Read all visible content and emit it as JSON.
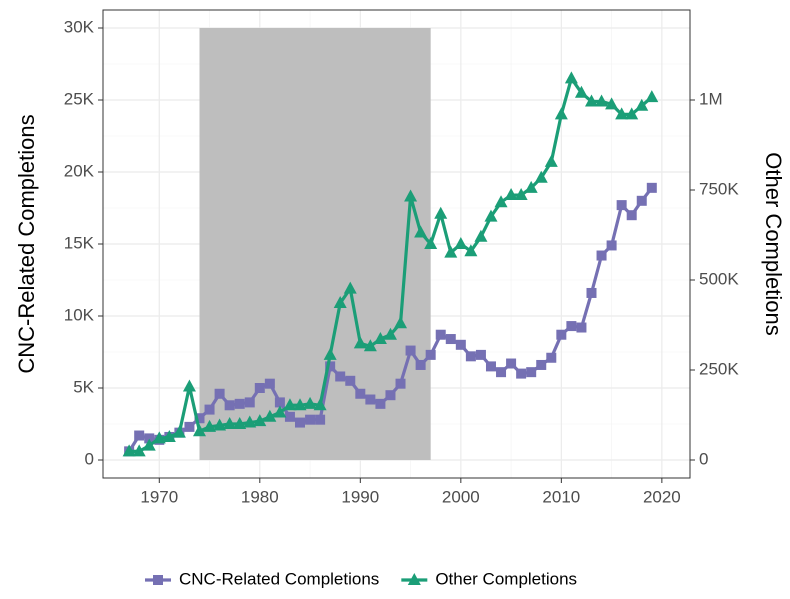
{
  "chart_data": {
    "type": "line",
    "x": [
      1967,
      1968,
      1969,
      1970,
      1971,
      1972,
      1973,
      1974,
      1975,
      1976,
      1977,
      1978,
      1979,
      1980,
      1981,
      1982,
      1983,
      1984,
      1985,
      1986,
      1987,
      1988,
      1989,
      1990,
      1991,
      1992,
      1993,
      1994,
      1995,
      1996,
      1997,
      1998,
      1999,
      2000,
      2001,
      2002,
      2003,
      2004,
      2005,
      2006,
      2007,
      2008,
      2009,
      2010,
      2011,
      2012,
      2013,
      2014,
      2015,
      2016,
      2017,
      2018,
      2019
    ],
    "series": [
      {
        "name": "CNC-Related Completions",
        "color": "#7570b3",
        "marker": "square",
        "values": [
          600,
          1700,
          1500,
          1400,
          1600,
          1900,
          2300,
          2900,
          3500,
          4600,
          3800,
          3900,
          4000,
          5000,
          5300,
          4000,
          3000,
          2600,
          2800,
          2800,
          6500,
          5800,
          5500,
          4600,
          4200,
          3900,
          4500,
          5300,
          7600,
          6600,
          7300,
          8700,
          8400,
          8000,
          7200,
          7300,
          6500,
          6100,
          6700,
          6000,
          6100,
          6600,
          7100,
          8700,
          9300,
          9200,
          11600,
          14200,
          14900,
          17700,
          17000,
          18000,
          18900
        ]
      },
      {
        "name": "Other Completions",
        "color": "#1b9e77",
        "marker": "triangle",
        "axis": "y2",
        "values": [
          24000,
          24000,
          40000,
          60000,
          64000,
          76000,
          204000,
          80000,
          92000,
          96000,
          100000,
          100000,
          104000,
          108000,
          120000,
          132000,
          152000,
          152000,
          156000,
          152000,
          292000,
          436000,
          476000,
          324000,
          316000,
          336000,
          348000,
          380000,
          732000,
          632000,
          600000,
          684000,
          576000,
          600000,
          580000,
          620000,
          676000,
          716000,
          736000,
          736000,
          756000,
          784000,
          828000,
          960000,
          1060000,
          1020000,
          996000,
          996000,
          988000,
          960000,
          960000,
          984000,
          1008000
        ]
      }
    ],
    "shaded_region": {
      "x": [
        1974,
        1997
      ],
      "y": [
        0,
        30000
      ],
      "color": "#bebebe"
    },
    "xlim": [
      1964.4,
      2022.8
    ],
    "xticks": [
      1970,
      1980,
      1990,
      2000,
      2010,
      2020
    ],
    "ylim": [
      -1250,
      31250
    ],
    "yticks": [
      0,
      {
        "value": 5000,
        "label": "5K"
      },
      {
        "value": 10000,
        "label": "10K"
      },
      {
        "value": 15000,
        "label": "15K"
      },
      {
        "value": 20000,
        "label": "20K"
      },
      {
        "value": 25000,
        "label": "25K"
      },
      {
        "value": 30000,
        "label": "30K"
      }
    ],
    "y2lim": [
      -50000,
      1250000
    ],
    "y2ticks": [
      0,
      {
        "value": 250000,
        "label": "250K"
      },
      {
        "value": 500000,
        "label": "500K"
      },
      {
        "value": 750000,
        "label": "750K"
      },
      {
        "value": 1000000,
        "label": "1M"
      }
    ],
    "ylabel": "CNC-Related Completions",
    "y2label": "Other Completions",
    "grid": true,
    "minor_grid": true,
    "legend": "bottom"
  }
}
